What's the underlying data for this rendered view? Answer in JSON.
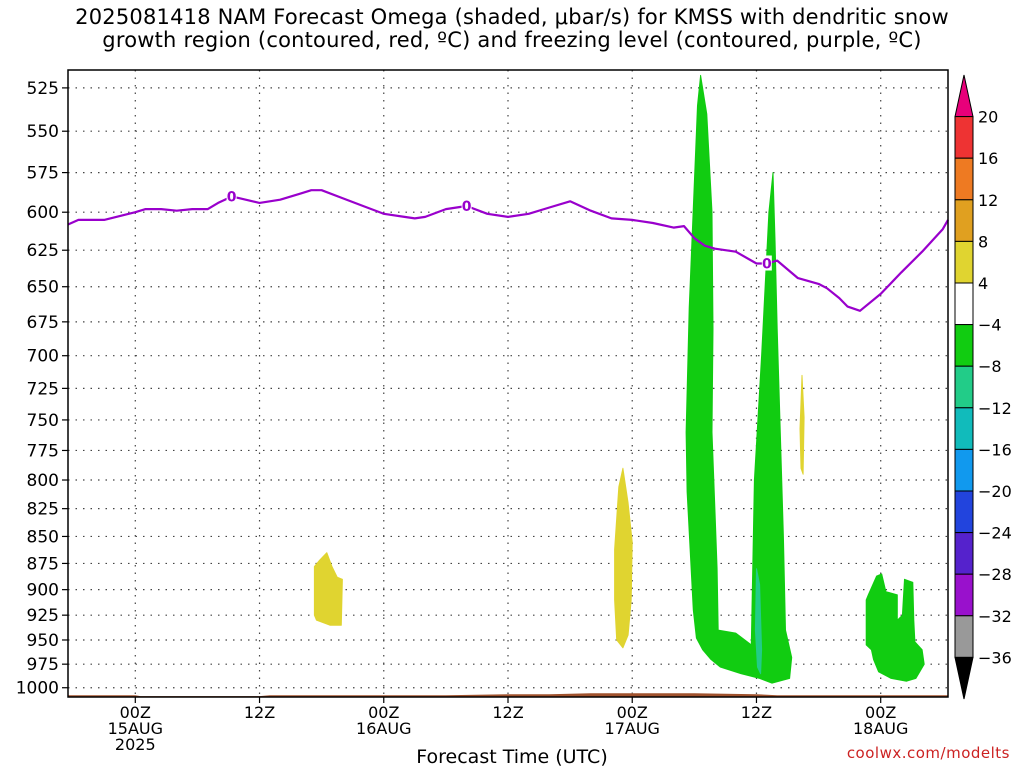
{
  "title_line1": "2025081418 NAM Forecast Omega (shaded, μbar/s) for KMSS with dendritic snow",
  "title_line2": "growth region (contoured, red, ºC) and freezing level (contoured, purple, ºC)",
  "watermark": "coolwx.com/modelts",
  "chart_data": {
    "type": "area",
    "title": "2025081418 NAM Forecast Omega (shaded, μbar/s) for KMSS with dendritic snow growth region (contoured, red, ºC) and freezing level (contoured, purple, ºC)",
    "xlabel": "Forecast Time (UTC)",
    "ylabel": "",
    "xlim_hours": [
      -6.5,
      78.5
    ],
    "ylim_hpa": [
      1010,
      515
    ],
    "y_scale": "log-pressure",
    "grid": true,
    "y_ticks": [
      525,
      550,
      575,
      600,
      625,
      650,
      675,
      700,
      725,
      750,
      775,
      800,
      825,
      850,
      875,
      900,
      925,
      950,
      975,
      1000
    ],
    "x_ticks": [
      {
        "hour": 0,
        "line1": "00Z",
        "line2": "15AUG",
        "line3": "2025"
      },
      {
        "hour": 12,
        "line1": "12Z",
        "line2": "",
        "line3": ""
      },
      {
        "hour": 24,
        "line1": "00Z",
        "line2": "16AUG",
        "line3": ""
      },
      {
        "hour": 36,
        "line1": "12Z",
        "line2": "",
        "line3": ""
      },
      {
        "hour": 48,
        "line1": "00Z",
        "line2": "17AUG",
        "line3": ""
      },
      {
        "hour": 60,
        "line1": "12Z",
        "line2": "",
        "line3": ""
      },
      {
        "hour": 72,
        "line1": "00Z",
        "line2": "18AUG",
        "line3": ""
      }
    ],
    "colorbar": {
      "units": "μbar/s",
      "levels": [
        "20",
        "16",
        "12",
        "8",
        "4",
        "−4",
        "−8",
        "−12",
        "−16",
        "−20",
        "−24",
        "−28",
        "−32",
        "−36"
      ],
      "colors": [
        "#e8007a",
        "#ee3333",
        "#ee7a22",
        "#e0a020",
        "#e0d430",
        "#ffffff",
        "#11cc11",
        "#22cc88",
        "#11bbbb",
        "#1199ee",
        "#2244dd",
        "#5522cc",
        "#9911cc",
        "#999999",
        "#000000"
      ]
    },
    "freezing_level": {
      "label": "0",
      "color": "#9900cc",
      "hours": [
        -6.5,
        -5.5,
        -3,
        0,
        1,
        2.5,
        4,
        5.5,
        6,
        7,
        8,
        9.3,
        10,
        12,
        14,
        16,
        17,
        18,
        20,
        22,
        24,
        26,
        27,
        28,
        30,
        32,
        34,
        36,
        38,
        40,
        42,
        44,
        46,
        48,
        50,
        52,
        53,
        54,
        55,
        56,
        58,
        60,
        61,
        62,
        64,
        66,
        66.8,
        68,
        68.8,
        70,
        72,
        74,
        76,
        78,
        78.5
      ],
      "pressure_hpa": [
        608,
        605,
        605,
        600,
        598,
        598,
        599,
        598,
        598,
        598,
        594,
        590,
        591,
        594,
        592,
        588,
        586,
        586,
        591,
        596,
        601,
        603,
        604,
        603,
        598,
        596,
        601,
        603,
        601,
        597,
        593,
        599,
        604,
        605,
        607,
        610,
        609,
        617,
        622,
        624,
        626,
        634,
        634,
        632,
        644,
        648,
        651,
        658,
        664,
        667,
        655,
        640,
        626,
        611,
        605
      ]
    },
    "ground_surface_hpa": [
      1008,
      1008,
      1009,
      1009,
      1009,
      1008,
      1008,
      1008,
      1008,
      1007,
      1007,
      1006,
      1006,
      1006,
      1007,
      1008,
      1008
    ],
    "ground_surface_hours": [
      -6.5,
      0,
      0.5,
      8,
      12,
      13,
      24,
      28,
      30,
      36,
      40,
      44,
      50,
      54,
      60,
      62,
      78.5
    ],
    "omega_regions": [
      {
        "level": "4",
        "color": "#e0d430",
        "polygon_hours_hpa": [
          [
            17.3,
            878
          ],
          [
            17.8,
            872
          ],
          [
            18.5,
            865
          ],
          [
            19,
            878
          ],
          [
            19.5,
            888
          ],
          [
            20.0,
            890
          ],
          [
            19.9,
            935
          ],
          [
            18.8,
            935
          ],
          [
            17.5,
            930
          ],
          [
            17.3,
            925
          ]
        ]
      },
      {
        "level": "4",
        "color": "#e0d430",
        "polygon_hours_hpa": [
          [
            46.3,
            862
          ],
          [
            46.7,
            806
          ],
          [
            47.1,
            790
          ],
          [
            47.6,
            820
          ],
          [
            48.0,
            855
          ],
          [
            47.9,
            910
          ],
          [
            47.6,
            945
          ],
          [
            47.1,
            958
          ],
          [
            46.5,
            950
          ],
          [
            46.3,
            910
          ]
        ]
      },
      {
        "level": "4",
        "color": "#e0d430",
        "polygon_hours_hpa": [
          [
            64.2,
            757
          ],
          [
            64.4,
            715
          ],
          [
            64.6,
            748
          ],
          [
            64.5,
            795
          ],
          [
            64.3,
            790
          ]
        ]
      },
      {
        "level": "-4",
        "color": "#11cc11",
        "polygon_hours_hpa": [
          [
            53.5,
            665
          ],
          [
            54.3,
            535
          ],
          [
            54.6,
            518
          ],
          [
            55.2,
            540
          ],
          [
            55.7,
            600
          ],
          [
            55.8,
            680
          ],
          [
            55.7,
            760
          ],
          [
            56,
            830
          ],
          [
            56.2,
            880
          ],
          [
            56.3,
            940
          ],
          [
            58,
            943
          ],
          [
            59.5,
            955
          ],
          [
            59.8,
            800
          ],
          [
            60.5,
            700
          ],
          [
            61.2,
            600
          ],
          [
            61.6,
            575
          ],
          [
            61.8,
            620
          ],
          [
            62.0,
            680
          ],
          [
            62.3,
            760
          ],
          [
            62.6,
            850
          ],
          [
            62.8,
            940
          ],
          [
            63.4,
            968
          ],
          [
            63.2,
            990
          ],
          [
            61.5,
            995
          ],
          [
            60.3,
            990
          ],
          [
            58.5,
            985
          ],
          [
            56.5,
            978
          ],
          [
            55.6,
            970
          ],
          [
            54.8,
            960
          ],
          [
            54.2,
            948
          ],
          [
            53.9,
            920
          ],
          [
            53.3,
            810
          ],
          [
            53.2,
            760
          ]
        ]
      },
      {
        "level": "-4",
        "color": "#11cc11",
        "polygon_hours_hpa": [
          [
            70.8,
            905
          ],
          [
            71.6,
            887
          ],
          [
            72.1,
            885
          ],
          [
            72.5,
            902
          ],
          [
            73.6,
            905
          ],
          [
            73.6,
            930
          ],
          [
            74.1,
            925
          ],
          [
            74.3,
            890
          ],
          [
            75.1,
            893
          ],
          [
            75.2,
            930
          ],
          [
            75.3,
            952
          ],
          [
            76.0,
            960
          ],
          [
            76.2,
            975
          ],
          [
            75.4,
            990
          ],
          [
            74.5,
            993
          ],
          [
            73,
            990
          ],
          [
            71.8,
            983
          ],
          [
            71.3,
            970
          ],
          [
            71.1,
            960
          ],
          [
            70.6,
            955
          ],
          [
            70.6,
            910
          ]
        ]
      },
      {
        "level": "-8",
        "color": "#22cc88",
        "polygon_hours_hpa": [
          [
            59.9,
            940
          ],
          [
            60.0,
            880
          ],
          [
            60.3,
            895
          ],
          [
            60.5,
            960
          ],
          [
            60.4,
            985
          ],
          [
            60.1,
            978
          ]
        ]
      }
    ]
  }
}
